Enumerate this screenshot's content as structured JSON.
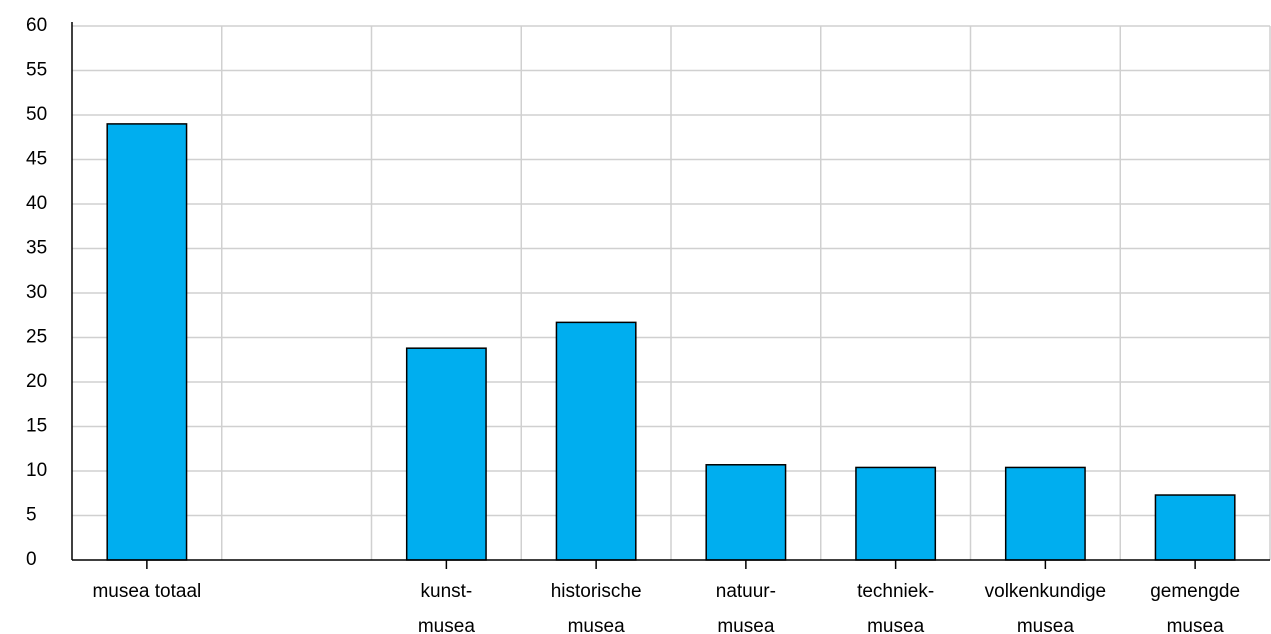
{
  "chart_data": {
    "type": "bar",
    "categories": [
      [
        "musea totaal"
      ],
      null,
      [
        "kunst-",
        "musea"
      ],
      [
        "historische",
        "musea"
      ],
      [
        "natuur-",
        "musea"
      ],
      [
        "techniek-",
        "musea"
      ],
      [
        "volkenkundige",
        "musea"
      ],
      [
        "gemengde",
        "musea"
      ]
    ],
    "values": [
      49.0,
      null,
      23.8,
      26.7,
      10.7,
      10.4,
      10.4,
      7.3
    ],
    "color": "#00aeef",
    "ylim": [
      0,
      60
    ],
    "yticks": [
      0,
      5,
      10,
      15,
      20,
      25,
      30,
      35,
      40,
      45,
      50,
      55,
      60
    ],
    "grid": true
  }
}
